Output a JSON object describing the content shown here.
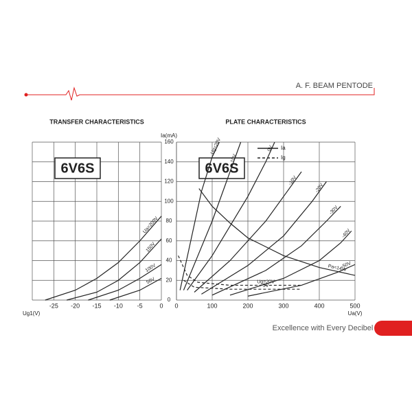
{
  "header": {
    "title": "A. F. BEAM PENTODE"
  },
  "footer": {
    "tagline": "Excellence with Every Decibel"
  },
  "chart_data": [
    {
      "type": "line",
      "title": "TRANSFER CHARACTERISTICS",
      "badge": "6V6S",
      "x_label": "Ug1(V)",
      "xlim": [
        -30,
        0
      ],
      "xticks": [
        -25,
        -20,
        -15,
        -10,
        -5,
        0
      ],
      "ylim": [
        0,
        160
      ],
      "yticks": [
        0,
        20,
        40,
        60,
        80,
        100,
        120,
        140,
        160
      ],
      "grid": true,
      "color": "#222222",
      "series": [
        {
          "name": "Ua=200V",
          "x": [
            -27,
            -20,
            -15,
            -10,
            -5,
            0
          ],
          "values": [
            0,
            10,
            22,
            38,
            60,
            85
          ]
        },
        {
          "name": "150V",
          "x": [
            -22,
            -15,
            -10,
            -5,
            0
          ],
          "values": [
            0,
            8,
            20,
            38,
            62
          ]
        },
        {
          "name": "100V",
          "x": [
            -17,
            -10,
            -5,
            0
          ],
          "values": [
            0,
            10,
            22,
            36
          ]
        },
        {
          "name": "50V",
          "x": [
            -12,
            -5,
            0
          ],
          "values": [
            0,
            10,
            22
          ]
        }
      ]
    },
    {
      "type": "line",
      "title": "PLATE CHARACTERISTICS",
      "badge": "6V6S",
      "y_label": "Ia(mA)",
      "x_label": "Ua(V)",
      "xlim": [
        0,
        500
      ],
      "xticks": [
        0,
        100,
        200,
        300,
        400,
        500
      ],
      "ylim": [
        0,
        160
      ],
      "yticks": [
        0,
        20,
        40,
        60,
        80,
        100,
        120,
        140,
        160
      ],
      "grid": true,
      "color": "#222222",
      "legend": [
        {
          "label": "Ia",
          "dashed": false
        },
        {
          "label": "Ig",
          "dashed": true
        }
      ],
      "series": [
        {
          "name": "Ug=20V",
          "x": [
            10,
            40,
            70,
            100,
            120
          ],
          "values": [
            10,
            60,
            110,
            145,
            160
          ]
        },
        {
          "name": "10V",
          "x": [
            20,
            60,
            100,
            140,
            180
          ],
          "values": [
            10,
            45,
            80,
            120,
            160
          ]
        },
        {
          "name": "0V",
          "x": [
            30,
            100,
            150,
            200,
            250,
            275
          ],
          "values": [
            10,
            45,
            75,
            105,
            140,
            160
          ]
        },
        {
          "name": "-10V",
          "x": [
            50,
            150,
            250,
            300,
            350
          ],
          "values": [
            8,
            40,
            80,
            105,
            130
          ]
        },
        {
          "name": "-20V",
          "x": [
            70,
            200,
            300,
            380,
            420
          ],
          "values": [
            6,
            35,
            65,
            100,
            120
          ]
        },
        {
          "name": "-30V",
          "x": [
            100,
            250,
            350,
            420,
            460
          ],
          "values": [
            5,
            30,
            55,
            80,
            95
          ]
        },
        {
          "name": "-40V",
          "x": [
            150,
            300,
            400,
            460,
            490
          ],
          "values": [
            5,
            22,
            40,
            58,
            70
          ]
        },
        {
          "name": "-50V",
          "x": [
            200,
            350,
            450,
            500
          ],
          "values": [
            4,
            15,
            28,
            36
          ]
        },
        {
          "name": "Pa=14W",
          "x": [
            63,
            100,
            150,
            200,
            300,
            400,
            500
          ],
          "values": [
            113,
            95,
            78,
            63,
            45,
            33,
            25
          ]
        },
        {
          "name": "Ug=20V",
          "dashed": true,
          "x": [
            5,
            30,
            60,
            150,
            350
          ],
          "values": [
            45,
            25,
            18,
            15,
            15
          ]
        },
        {
          "name": "5V",
          "dashed": true,
          "x": [
            20,
            50,
            150,
            350
          ],
          "values": [
            20,
            13,
            11,
            11
          ]
        }
      ]
    }
  ]
}
